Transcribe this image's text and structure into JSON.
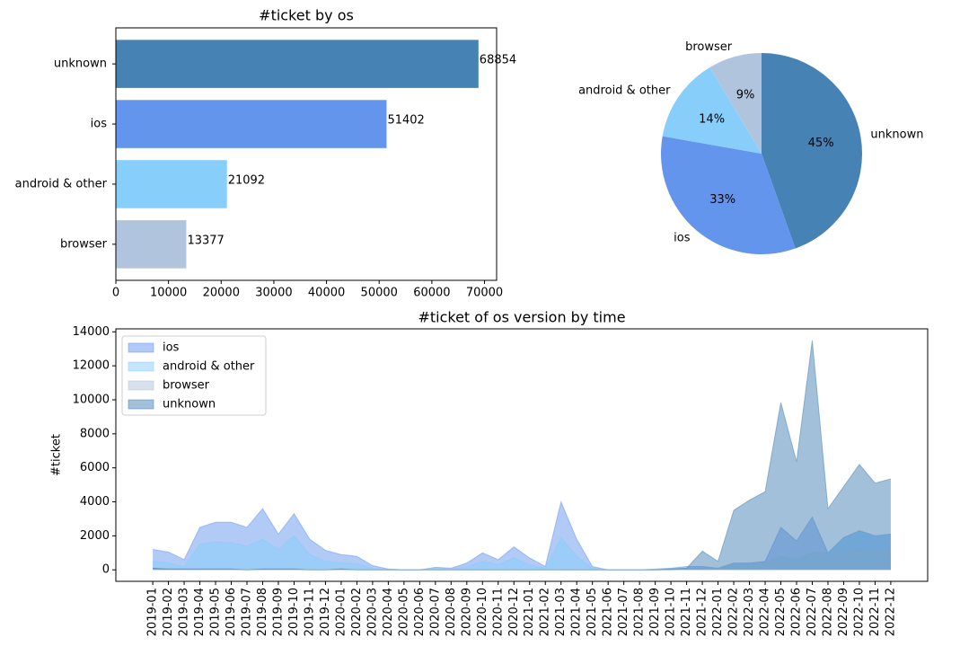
{
  "chart_data": [
    {
      "type": "barh",
      "title": "#ticket by os",
      "categories": [
        "unknown",
        "ios",
        "android & other",
        "browser"
      ],
      "values": [
        68854,
        51402,
        21092,
        13377
      ],
      "colors": [
        "#4682b4",
        "#6495ed",
        "#87cefa",
        "#b0c4de"
      ],
      "xlim": [
        0,
        72297
      ],
      "xticks": [
        0,
        10000,
        20000,
        30000,
        40000,
        50000,
        60000,
        70000
      ]
    },
    {
      "type": "pie",
      "categories": [
        "unknown",
        "ios",
        "android & other",
        "browser"
      ],
      "values": [
        44.5,
        33.2,
        13.6,
        8.6
      ],
      "value_labels": [
        "45%",
        "33%",
        "14%",
        "9%"
      ],
      "colors": [
        "#4682b4",
        "#6495ed",
        "#87cefa",
        "#b0c4de"
      ],
      "start_angle": 90,
      "counterclock": false
    },
    {
      "type": "area",
      "title": "#ticket of os version by time",
      "ylabel": "#ticket",
      "x": [
        "2019-01",
        "2019-02",
        "2019-03",
        "2019-04",
        "2019-05",
        "2019-06",
        "2019-07",
        "2019-08",
        "2019-09",
        "2019-10",
        "2019-11",
        "2019-12",
        "2020-01",
        "2020-02",
        "2020-03",
        "2020-04",
        "2020-05",
        "2020-06",
        "2020-07",
        "2020-08",
        "2020-09",
        "2020-10",
        "2020-11",
        "2020-12",
        "2021-01",
        "2021-02",
        "2021-03",
        "2021-04",
        "2021-05",
        "2021-06",
        "2021-07",
        "2021-08",
        "2021-09",
        "2021-10",
        "2021-11",
        "2021-12",
        "2022-01",
        "2022-02",
        "2022-03",
        "2022-04",
        "2022-05",
        "2022-06",
        "2022-07",
        "2022-08",
        "2022-09",
        "2022-10",
        "2022-11",
        "2022-12"
      ],
      "series": [
        {
          "name": "ios",
          "color": "#6495ed",
          "values": [
            1200,
            1050,
            600,
            2500,
            2800,
            2800,
            2500,
            3600,
            2100,
            3300,
            1800,
            1150,
            900,
            800,
            250,
            50,
            0,
            0,
            150,
            100,
            400,
            1000,
            600,
            1350,
            700,
            200,
            4000,
            1800,
            200,
            0,
            0,
            0,
            50,
            100,
            200,
            200,
            100,
            400,
            400,
            500,
            2500,
            1700,
            3100,
            1000,
            1900,
            2300,
            2000,
            2100
          ]
        },
        {
          "name": "android & other",
          "color": "#87cefa",
          "values": [
            500,
            400,
            200,
            1500,
            1650,
            1600,
            1400,
            1800,
            1200,
            2000,
            900,
            500,
            400,
            350,
            100,
            0,
            0,
            0,
            100,
            50,
            200,
            500,
            300,
            700,
            300,
            100,
            1900,
            800,
            100,
            0,
            0,
            0,
            0,
            0,
            50,
            100,
            100,
            300,
            350,
            400,
            800,
            600,
            1000,
            1000,
            1800,
            2300,
            2000,
            2100
          ]
        },
        {
          "name": "browser",
          "color": "#b0c4de",
          "values": [
            100,
            50,
            50,
            50,
            50,
            50,
            0,
            50,
            50,
            50,
            0,
            0,
            50,
            0,
            0,
            0,
            0,
            0,
            0,
            0,
            0,
            0,
            0,
            0,
            0,
            0,
            0,
            0,
            0,
            0,
            0,
            0,
            0,
            0,
            50,
            100,
            100,
            400,
            400,
            450,
            800,
            600,
            1000,
            900,
            1100,
            1200,
            1100,
            1200
          ]
        },
        {
          "name": "unknown",
          "color": "#4682b4",
          "values": [
            100,
            50,
            50,
            50,
            50,
            50,
            0,
            50,
            50,
            50,
            0,
            0,
            50,
            0,
            0,
            0,
            0,
            0,
            0,
            0,
            0,
            0,
            0,
            0,
            0,
            0,
            0,
            0,
            0,
            0,
            0,
            0,
            0,
            50,
            100,
            1100,
            500,
            3500,
            4100,
            4600,
            9850,
            6350,
            13500,
            3600,
            4900,
            6200,
            5100,
            5350
          ]
        }
      ],
      "ylim": [
        -675,
        14175
      ],
      "yticks": [
        0,
        2000,
        4000,
        6000,
        8000,
        10000,
        12000,
        14000
      ],
      "legend": "upper left",
      "alpha": 0.5
    }
  ]
}
